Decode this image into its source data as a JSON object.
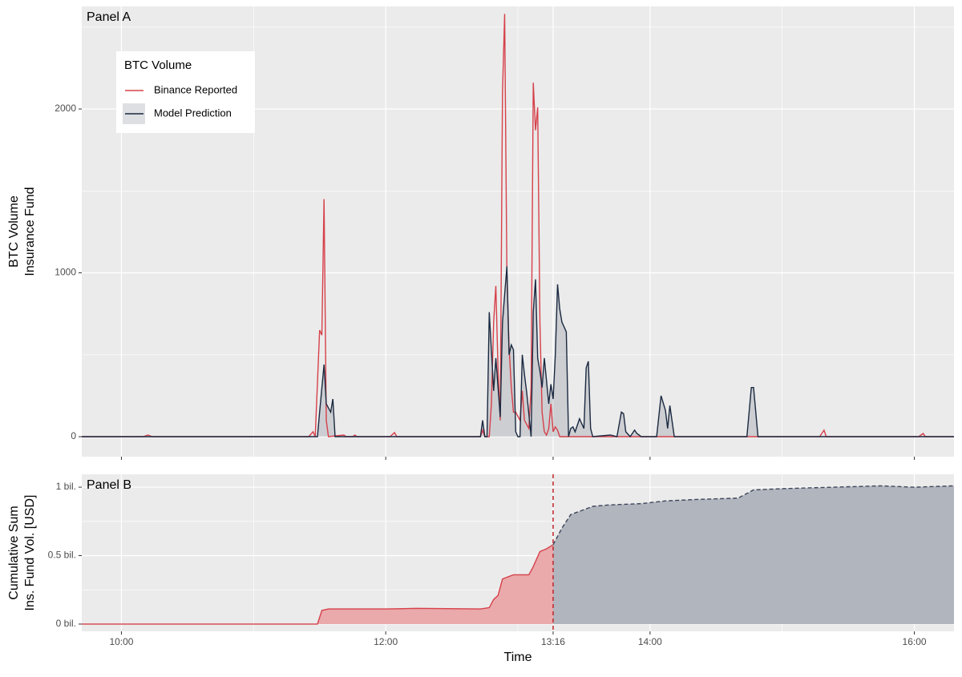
{
  "chart_data": [
    {
      "type": "line",
      "panel_label": "Panel A",
      "ylabel": [
        "BTC Volume",
        "Insurance Fund"
      ],
      "xlim": [
        "09:42",
        "16:18"
      ],
      "ylim": [
        -122,
        2626
      ],
      "yticks": [
        0,
        1000,
        2000
      ],
      "yminor": [
        500,
        1500,
        2500
      ],
      "xminor": [
        "11:00",
        "13:00",
        "15:00"
      ],
      "grid": true,
      "legend": {
        "title": "BTC Volume",
        "position": "top-left"
      },
      "series": [
        {
          "name": "Binance Reported",
          "color": "#d6404a",
          "x": [
            "09:42",
            "10:10",
            "10:12",
            "10:14",
            "11:25",
            "11:27",
            "11:28",
            "11:30",
            "11:31",
            "11:32",
            "11:33",
            "11:34",
            "11:41",
            "11:42",
            "11:45",
            "11:46",
            "11:47",
            "12:02",
            "12:04",
            "12:05",
            "12:43",
            "12:44",
            "12:45",
            "12:47",
            "12:48",
            "12:49",
            "12:50",
            "12:51",
            "12:52",
            "12:53",
            "12:54",
            "12:55",
            "12:56",
            "12:57",
            "12:58",
            "12:59",
            "13:01",
            "13:02",
            "13:03",
            "13:05",
            "13:06",
            "13:07",
            "13:08",
            "13:09",
            "13:10",
            "13:11",
            "13:12",
            "13:13",
            "13:14",
            "13:15",
            "13:16",
            "13:17",
            "13:18",
            "13:19",
            "15:17",
            "15:19",
            "15:20",
            "16:02",
            "16:04",
            "16:05",
            "16:18"
          ],
          "values": [
            0,
            0,
            10,
            0,
            0,
            30,
            0,
            650,
            620,
            1450,
            100,
            0,
            10,
            0,
            0,
            10,
            0,
            0,
            25,
            0,
            0,
            40,
            0,
            0,
            200,
            700,
            920,
            400,
            100,
            2100,
            2580,
            1000,
            550,
            300,
            150,
            150,
            100,
            280,
            100,
            50,
            300,
            2160,
            1870,
            2010,
            700,
            150,
            30,
            10,
            50,
            200,
            30,
            60,
            40,
            0,
            0,
            40,
            0,
            0,
            20,
            0,
            0
          ]
        },
        {
          "name": "Model Prediction",
          "color": "#1a2940",
          "fill": "rgba(26,41,64,0.15)",
          "x": [
            "09:42",
            "11:29",
            "11:30",
            "11:32",
            "11:33",
            "11:35",
            "11:36",
            "11:37",
            "12:43",
            "12:44",
            "12:45",
            "12:46",
            "12:47",
            "12:49",
            "12:50",
            "12:51",
            "12:52",
            "12:53",
            "12:55",
            "12:56",
            "12:57",
            "12:58",
            "12:59",
            "13:00",
            "13:01",
            "13:02",
            "13:03",
            "13:04",
            "13:06",
            "13:07",
            "13:08",
            "13:09",
            "13:10",
            "13:11",
            "13:12",
            "13:14",
            "13:15",
            "13:16",
            "13:17",
            "13:18",
            "13:19",
            "13:20",
            "13:22",
            "13:23",
            "13:24",
            "13:25",
            "13:26",
            "13:28",
            "13:30",
            "13:31",
            "13:32",
            "13:33",
            "13:34",
            "13:42",
            "13:45",
            "13:47",
            "13:48",
            "13:49",
            "13:51",
            "13:53",
            "13:54",
            "13:56",
            "14:03",
            "14:05",
            "14:07",
            "14:08",
            "14:09",
            "14:11",
            "14:44",
            "14:46",
            "14:47",
            "14:49",
            "16:18"
          ],
          "values": [
            0,
            0,
            150,
            440,
            200,
            150,
            230,
            0,
            0,
            100,
            0,
            0,
            760,
            280,
            480,
            300,
            120,
            700,
            1040,
            500,
            560,
            530,
            30,
            0,
            0,
            500,
            380,
            270,
            0,
            760,
            960,
            480,
            400,
            300,
            480,
            200,
            320,
            230,
            500,
            930,
            780,
            700,
            640,
            0,
            50,
            60,
            30,
            110,
            50,
            420,
            460,
            50,
            0,
            10,
            0,
            150,
            140,
            30,
            0,
            40,
            20,
            0,
            0,
            250,
            160,
            50,
            190,
            0,
            0,
            300,
            300,
            0,
            0
          ]
        }
      ]
    },
    {
      "type": "area",
      "panel_label": "Panel B",
      "ylabel": [
        "Cumulative Sum",
        "Ins. Fund Vol. [USD]"
      ],
      "xlabel": "Time",
      "xlim": [
        "09:42",
        "16:18"
      ],
      "ylim": [
        -0.053,
        1.094
      ],
      "yticks": [
        {
          "value": 0,
          "label": "0 bil."
        },
        {
          "value": 0.5,
          "label": "0.5 bil."
        },
        {
          "value": 1,
          "label": "1 bil."
        }
      ],
      "yminor": [
        0.25,
        0.75
      ],
      "xticks": [
        "10:00",
        "12:00",
        "13:16",
        "14:00",
        "16:00"
      ],
      "xminor": [
        "11:00",
        "13:00",
        "15:00"
      ],
      "grid": true,
      "vline": "13:16",
      "series": [
        {
          "color": "#d6404a",
          "fill": "#eaa9ab",
          "x": [
            "09:42",
            "11:29",
            "11:31",
            "11:34",
            "12:00",
            "12:14",
            "12:43",
            "12:47",
            "12:49",
            "12:51",
            "12:53",
            "12:58",
            "13:05",
            "13:07",
            "13:10",
            "13:13",
            "13:16"
          ],
          "values": [
            0,
            0,
            0.1,
            0.11,
            0.11,
            0.115,
            0.11,
            0.12,
            0.18,
            0.21,
            0.33,
            0.36,
            0.36,
            0.42,
            0.53,
            0.55,
            0.58
          ]
        },
        {
          "color": "#3c4659",
          "fill": "#b1b5be",
          "dash": true,
          "x": [
            "13:16",
            "13:20",
            "13:24",
            "13:29",
            "13:34",
            "13:41",
            "13:56",
            "14:07",
            "14:21",
            "14:40",
            "14:47",
            "15:01",
            "15:23",
            "15:45",
            "16:00",
            "16:18"
          ],
          "values": [
            0.58,
            0.7,
            0.8,
            0.83,
            0.86,
            0.87,
            0.88,
            0.9,
            0.91,
            0.92,
            0.98,
            0.99,
            1.0,
            1.01,
            1.0,
            1.01
          ]
        }
      ]
    }
  ]
}
